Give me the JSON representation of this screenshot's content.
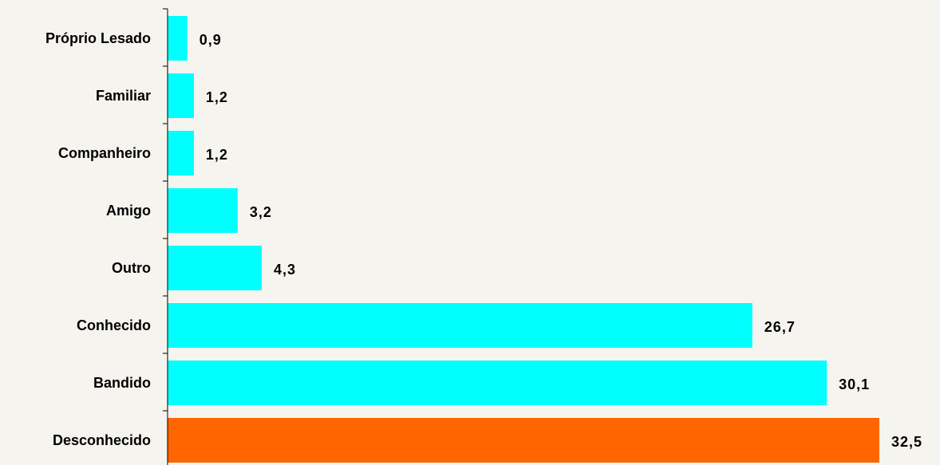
{
  "chart_data": {
    "type": "bar",
    "orientation": "horizontal",
    "title": "",
    "xlabel": "",
    "ylabel": "",
    "xlim": [
      0,
      32.5
    ],
    "grid": false,
    "legend": "none",
    "categories": [
      "Próprio Lesado",
      "Familiar",
      "Companheiro",
      "Amigo",
      "Outro",
      "Conhecido",
      "Bandido",
      "Desconhecido"
    ],
    "values": [
      0.9,
      1.2,
      1.2,
      3.2,
      4.3,
      26.7,
      30.1,
      32.5
    ],
    "value_labels": [
      "0,9",
      "1,2",
      "1,2",
      "3,2",
      "4,3",
      "26,7",
      "30,1",
      "32,5"
    ],
    "colors": {
      "default_bar": "#00ffff",
      "highlight_bar": "#ff6600",
      "background": "#f5f4ef",
      "axis": "#000000"
    },
    "highlight_index": 7
  }
}
